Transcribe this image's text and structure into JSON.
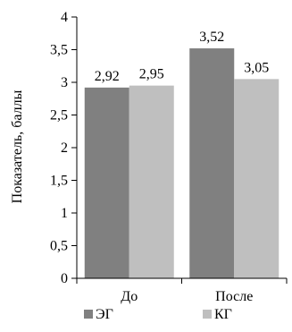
{
  "chart_data": {
    "type": "bar",
    "categories": [
      "До",
      "После"
    ],
    "series": [
      {
        "name": "ЭГ",
        "values": [
          2.92,
          3.52
        ],
        "labels": [
          "2,92",
          "3,52"
        ]
      },
      {
        "name": "КГ",
        "values": [
          2.95,
          3.05
        ],
        "labels": [
          "2,95",
          "3,05"
        ]
      }
    ],
    "title": "",
    "xlabel": "",
    "ylabel": "Показатель, баллы",
    "ylim": [
      0,
      4
    ],
    "yticks": [
      0,
      0.5,
      1,
      1.5,
      2,
      2.5,
      3,
      3.5,
      4
    ],
    "ytick_labels": [
      "0",
      "0,5",
      "1",
      "1,5",
      "2",
      "2,5",
      "3",
      "3,5",
      "4"
    ],
    "grid": false,
    "legend_position": "bottom",
    "colors": {
      "ЭГ": "#808080",
      "КГ": "#bfbfbf",
      "axis": "#000000"
    }
  }
}
